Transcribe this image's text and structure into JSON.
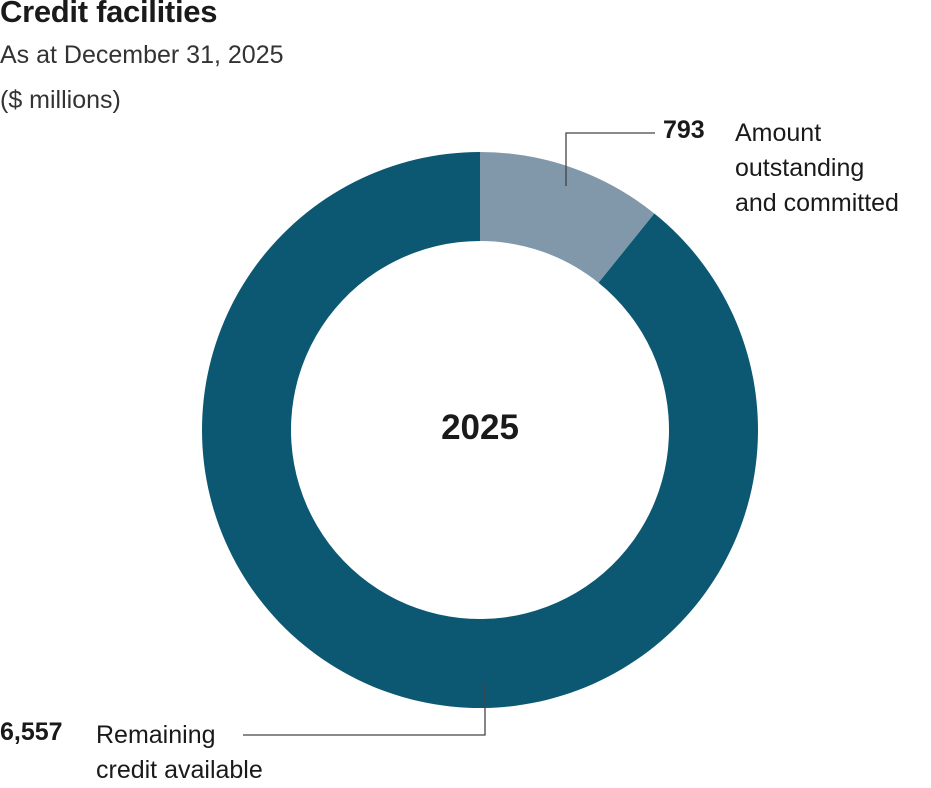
{
  "chart_data": {
    "type": "donut",
    "title": "Credit facilities",
    "subtitle": "As at December 31, 2025",
    "units": "($ millions)",
    "center_label": "2025",
    "slices": [
      {
        "value": 793,
        "value_label": "793",
        "label_lines": [
          "Amount",
          "outstanding",
          "and committed"
        ],
        "color": "#8198ab"
      },
      {
        "value": 6557,
        "value_label": "6,557",
        "label_lines": [
          "Remaining",
          "credit available"
        ],
        "color": "#0c5872"
      }
    ]
  }
}
